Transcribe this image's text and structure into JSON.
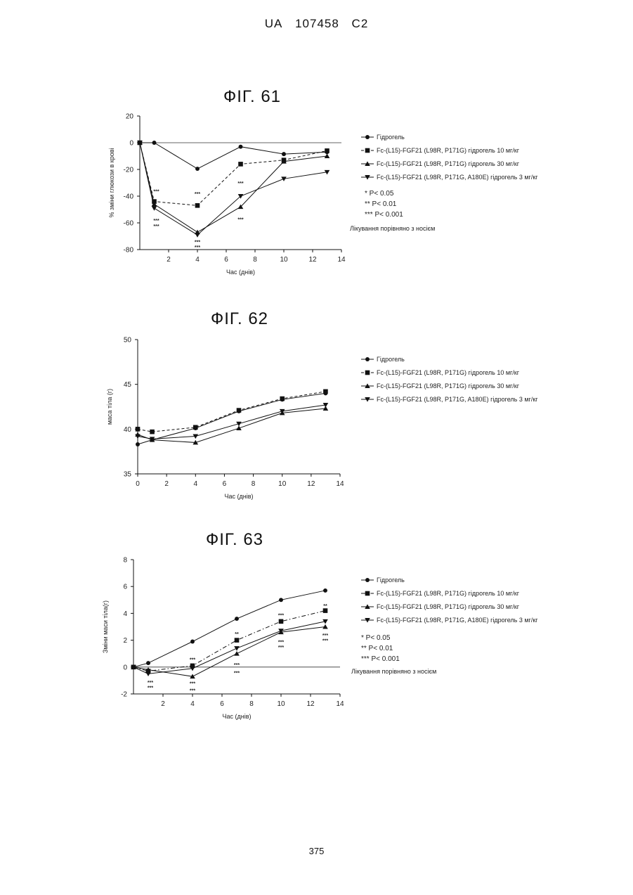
{
  "header": {
    "office": "UA",
    "number": "107458",
    "kind": "C2"
  },
  "page_number": "375",
  "chart_data": [
    {
      "type": "line",
      "title": "ФІГ. 61",
      "xlabel": "Час (днів)",
      "ylabel": "% зміни глюкози в крові",
      "xlim": [
        0,
        14
      ],
      "ylim": [
        -80,
        20
      ],
      "xticks": [
        2,
        4,
        6,
        8,
        10,
        12,
        14
      ],
      "yticks": [
        20,
        0,
        -20,
        -40,
        -60,
        -80
      ],
      "x": [
        0,
        1,
        4,
        7,
        10,
        13
      ],
      "series": [
        {
          "name": "Гідрогель",
          "marker": "circle",
          "dash": "solid",
          "values": [
            0,
            0,
            -19.5,
            -3,
            -8.5,
            -7
          ]
        },
        {
          "name": "Fc-(L15)-FGF21 (L98R, P171G) гідрогель 10 мг/кг",
          "marker": "square",
          "dash": "dashed",
          "values": [
            0,
            -44,
            -47,
            -16,
            -13,
            -6
          ]
        },
        {
          "name": "Fc-(L15)-FGF21 (L98R, P171G) гідрогель 30 мг/кг",
          "marker": "triangle-up",
          "dash": "solid",
          "values": [
            0,
            -46,
            -67,
            -48,
            -14,
            -10
          ]
        },
        {
          "name": "Fc-(L15)-FGF21 (L98R, P171G, A180E) гідрогель 3 мг/кг",
          "marker": "triangle-down",
          "dash": "solid",
          "values": [
            0,
            -49,
            -69,
            -40,
            -27,
            -22
          ]
        }
      ],
      "significance": [
        {
          "x": 1,
          "y": -36,
          "text": "***"
        },
        {
          "x": 1,
          "y": -58,
          "text": "***"
        },
        {
          "x": 1,
          "y": -62,
          "text": "***"
        },
        {
          "x": 4,
          "y": -38,
          "text": "***"
        },
        {
          "x": 4,
          "y": -74,
          "text": "***"
        },
        {
          "x": 4,
          "y": -78,
          "text": "***"
        },
        {
          "x": 7,
          "y": -30,
          "text": "***"
        },
        {
          "x": 7,
          "y": -57,
          "text": "***"
        }
      ],
      "notes": [
        "* P< 0.05",
        "** P< 0.01",
        "*** P< 0.001",
        "Лікування порівняно з носієм"
      ]
    },
    {
      "type": "line",
      "title": "ФІГ. 62",
      "xlabel": "Час (днів)",
      "ylabel": "маса тіла (г)",
      "xlim": [
        0,
        14
      ],
      "ylim": [
        35,
        50
      ],
      "xticks": [
        0,
        2,
        4,
        6,
        8,
        10,
        12,
        14
      ],
      "yticks": [
        50,
        45,
        40,
        35
      ],
      "x": [
        0,
        1,
        4,
        7,
        10,
        13
      ],
      "series": [
        {
          "name": "Гідрогель",
          "marker": "circle",
          "dash": "solid",
          "values": [
            38.3,
            38.8,
            40.1,
            42.0,
            43.3,
            44.0
          ]
        },
        {
          "name": "Fc-(L15)-FGF21 (L98R, P171G) гідрогель 10 мг/кг",
          "marker": "square",
          "dash": "dashed",
          "values": [
            40.0,
            39.7,
            40.2,
            42.1,
            43.4,
            44.2
          ]
        },
        {
          "name": "Fc-(L15)-FGF21 (L98R, P171G) гідрогель 30 мг/кг",
          "marker": "triangle-up",
          "dash": "solid",
          "values": [
            39.4,
            38.8,
            38.5,
            40.1,
            41.8,
            42.3
          ]
        },
        {
          "name": "Fc-(L15)-FGF21 (L98R, P171G, A180E) гідрогель 3 мг/кг",
          "marker": "triangle-down",
          "dash": "solid",
          "values": [
            39.2,
            38.9,
            39.2,
            40.6,
            42.0,
            42.7
          ]
        }
      ],
      "significance": [],
      "notes": []
    },
    {
      "type": "line",
      "title": "ФІГ. 63",
      "xlabel": "Час (днів)",
      "ylabel": "Зміни маси тіла(г)",
      "xlim": [
        0,
        14
      ],
      "ylim": [
        -2,
        8
      ],
      "xticks": [
        2,
        4,
        6,
        8,
        10,
        12,
        14
      ],
      "yticks": [
        8,
        6,
        4,
        2,
        0,
        -2
      ],
      "x": [
        0,
        1,
        4,
        7,
        10,
        13
      ],
      "series": [
        {
          "name": "Гідрогель",
          "marker": "circle",
          "dash": "solid",
          "values": [
            0,
            0.3,
            1.9,
            3.6,
            5.0,
            5.7
          ]
        },
        {
          "name": "Fc-(L15)-FGF21 (L98R, P171G) гідрогель 10 мг/кг",
          "marker": "square",
          "dash": "dashdot",
          "values": [
            0,
            -0.3,
            0.1,
            2.0,
            3.4,
            4.2
          ]
        },
        {
          "name": "Fc-(L15)-FGF21 (L98R, P171G) гідрогель 30 мг/кг",
          "marker": "triangle-up",
          "dash": "solid",
          "values": [
            0,
            -0.2,
            -0.7,
            1.0,
            2.6,
            3.0
          ]
        },
        {
          "name": "Fc-(L15)-FGF21 (L98R, P171G, A180E) гідрогель 3 мг/кг",
          "marker": "triangle-down",
          "dash": "solid",
          "values": [
            0,
            -0.5,
            -0.1,
            1.4,
            2.7,
            3.4
          ]
        }
      ],
      "significance": [
        {
          "x": 1,
          "y": -1.1,
          "text": "***"
        },
        {
          "x": 1,
          "y": -1.5,
          "text": "***"
        },
        {
          "x": 4,
          "y": 0.6,
          "text": "***"
        },
        {
          "x": 4,
          "y": -1.2,
          "text": "***"
        },
        {
          "x": 4,
          "y": -1.7,
          "text": "***"
        },
        {
          "x": 7,
          "y": 2.5,
          "text": "**"
        },
        {
          "x": 7,
          "y": 0.2,
          "text": "***"
        },
        {
          "x": 7,
          "y": -0.4,
          "text": "***"
        },
        {
          "x": 10,
          "y": 3.9,
          "text": "***"
        },
        {
          "x": 10,
          "y": 1.9,
          "text": "***"
        },
        {
          "x": 10,
          "y": 1.5,
          "text": "***"
        },
        {
          "x": 13,
          "y": 4.6,
          "text": "**"
        },
        {
          "x": 13,
          "y": 2.4,
          "text": "***"
        },
        {
          "x": 13,
          "y": 2.0,
          "text": "***"
        }
      ],
      "notes": [
        "* P< 0.05",
        "** P< 0.01",
        "*** P< 0.001",
        "Лікування порівняно з носієм"
      ]
    }
  ]
}
